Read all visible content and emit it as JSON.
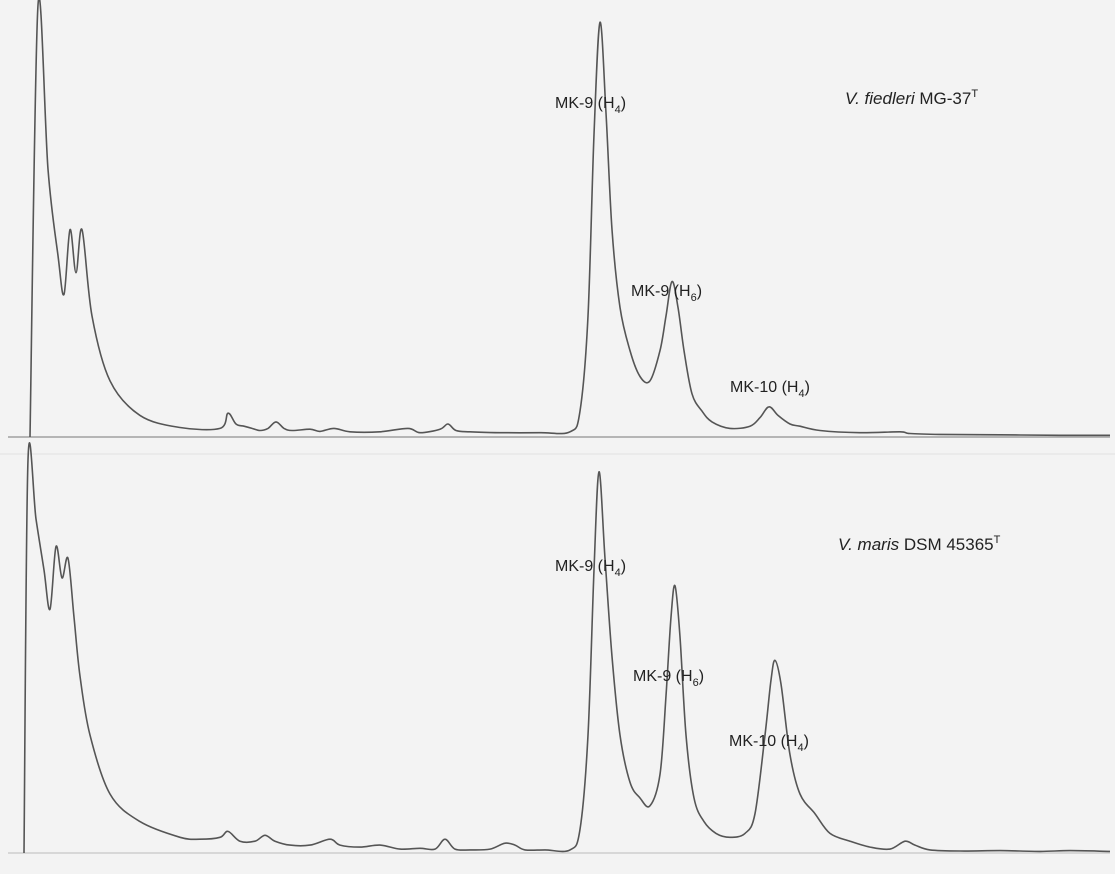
{
  "chart_data": [
    {
      "type": "line",
      "title": "",
      "xlabel": "",
      "ylabel": "",
      "grid": false,
      "sample": {
        "genus": "V.",
        "species": "fiedleri",
        "strain": "MG-37",
        "sup": "T"
      },
      "peaks": [
        {
          "base": "MK-9 (H",
          "sub": "4",
          "tail": ")",
          "x": 600,
          "height": 0.96
        },
        {
          "base": "MK-9 (H",
          "sub": "6",
          "tail": ")",
          "x": 672,
          "height": 0.36
        },
        {
          "base": "MK-10 (H",
          "sub": "4",
          "tail": ")",
          "x": 769,
          "height": 0.07
        }
      ],
      "series": [
        {
          "x": [
            30,
            38,
            48,
            58,
            64,
            70,
            76,
            82,
            92,
            110,
            140,
            180,
            220,
            228,
            236,
            244,
            252,
            260,
            268,
            276,
            284,
            292,
            310,
            320,
            334,
            350,
            380,
            408,
            420,
            440,
            448,
            456,
            470,
            500,
            540,
            570,
            580,
            588,
            594,
            600,
            606,
            612,
            620,
            630,
            640,
            650,
            660,
            666,
            672,
            678,
            684,
            692,
            702,
            712,
            730,
            750,
            760,
            769,
            778,
            790,
            800,
            820,
            860,
            900,
            910,
            940,
            1000,
            1060,
            1110
          ],
          "y": [
            0.0,
            1.0,
            0.62,
            0.42,
            0.33,
            0.48,
            0.38,
            0.48,
            0.28,
            0.13,
            0.05,
            0.022,
            0.02,
            0.055,
            0.03,
            0.025,
            0.02,
            0.015,
            0.02,
            0.035,
            0.02,
            0.015,
            0.018,
            0.013,
            0.02,
            0.012,
            0.012,
            0.02,
            0.01,
            0.018,
            0.03,
            0.015,
            0.012,
            0.01,
            0.01,
            0.012,
            0.06,
            0.28,
            0.7,
            0.96,
            0.75,
            0.48,
            0.3,
            0.2,
            0.14,
            0.13,
            0.2,
            0.28,
            0.36,
            0.3,
            0.2,
            0.1,
            0.06,
            0.035,
            0.02,
            0.025,
            0.045,
            0.07,
            0.05,
            0.03,
            0.025,
            0.015,
            0.01,
            0.012,
            0.008,
            0.006,
            0.005,
            0.004,
            0.004
          ]
        }
      ]
    },
    {
      "type": "line",
      "title": "",
      "xlabel": "",
      "ylabel": "",
      "grid": false,
      "sample": {
        "genus": "V.",
        "species": "maris",
        "strain": "DSM 45365",
        "sup": "T"
      },
      "peaks": [
        {
          "base": "MK-9 (H",
          "sub": "4",
          "tail": ")",
          "x": 599,
          "height": 0.97
        },
        {
          "base": "MK-9 (H",
          "sub": "6",
          "tail": ")",
          "x": 675,
          "height": 0.68
        },
        {
          "base": "MK-10 (H",
          "sub": "4",
          "tail": ")",
          "x": 775,
          "height": 0.49
        }
      ],
      "series": [
        {
          "x": [
            24,
            28,
            36,
            44,
            50,
            56,
            62,
            68,
            74,
            80,
            90,
            110,
            140,
            180,
            200,
            220,
            228,
            240,
            255,
            265,
            275,
            290,
            310,
            330,
            340,
            360,
            380,
            400,
            420,
            435,
            445,
            455,
            470,
            490,
            505,
            515,
            525,
            545,
            570,
            580,
            588,
            594,
            599,
            605,
            612,
            620,
            630,
            640,
            650,
            660,
            666,
            671,
            675,
            680,
            686,
            694,
            704,
            716,
            730,
            745,
            755,
            765,
            771,
            775,
            781,
            790,
            800,
            815,
            830,
            850,
            870,
            890,
            905,
            915,
            930,
            960,
            1000,
            1040,
            1070,
            1110
          ],
          "y": [
            0.0,
            1.0,
            0.85,
            0.72,
            0.62,
            0.78,
            0.7,
            0.75,
            0.6,
            0.45,
            0.3,
            0.15,
            0.08,
            0.04,
            0.035,
            0.04,
            0.055,
            0.03,
            0.03,
            0.045,
            0.03,
            0.02,
            0.02,
            0.035,
            0.02,
            0.015,
            0.02,
            0.01,
            0.012,
            0.01,
            0.035,
            0.01,
            0.008,
            0.01,
            0.025,
            0.02,
            0.008,
            0.008,
            0.008,
            0.06,
            0.3,
            0.72,
            0.97,
            0.75,
            0.5,
            0.3,
            0.18,
            0.14,
            0.12,
            0.2,
            0.4,
            0.6,
            0.68,
            0.55,
            0.3,
            0.14,
            0.08,
            0.05,
            0.04,
            0.05,
            0.1,
            0.3,
            0.44,
            0.49,
            0.43,
            0.25,
            0.15,
            0.1,
            0.05,
            0.03,
            0.015,
            0.01,
            0.03,
            0.02,
            0.008,
            0.005,
            0.006,
            0.004,
            0.006,
            0.004
          ]
        }
      ]
    }
  ]
}
